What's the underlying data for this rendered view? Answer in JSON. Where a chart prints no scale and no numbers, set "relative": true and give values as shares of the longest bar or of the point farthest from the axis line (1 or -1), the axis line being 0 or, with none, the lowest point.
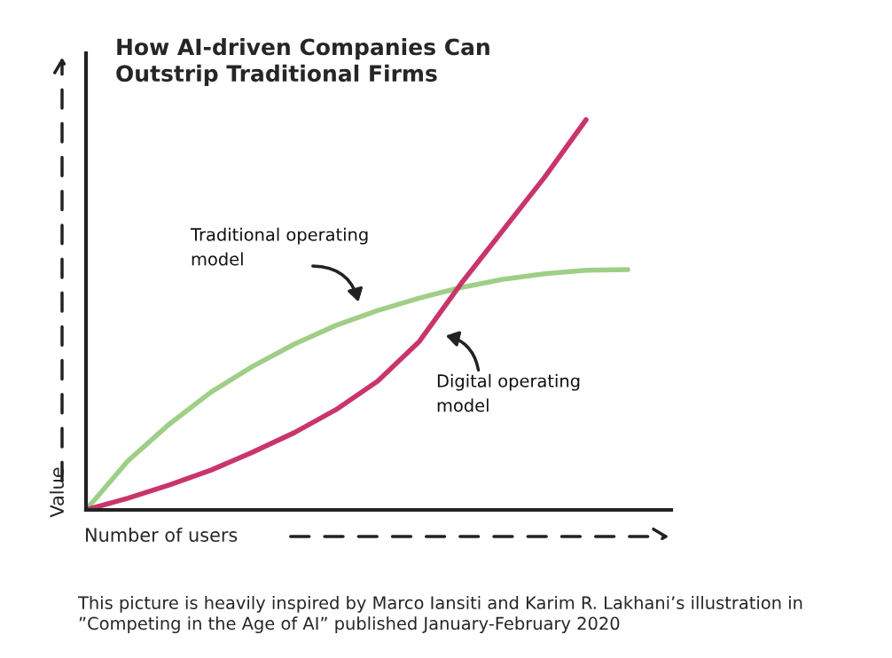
{
  "chart_data": {
    "type": "line",
    "relative": true,
    "title": "How AI-driven Companies Can\nOutstrip Traditional Firms",
    "xlabel": "Number of users",
    "ylabel": "Value",
    "categories": [
      null,
      null,
      null,
      null,
      null,
      null,
      null,
      null,
      null,
      null,
      null,
      null,
      null,
      null
    ],
    "series": [
      {
        "name": "Traditional operating model",
        "color": "#9fcf87",
        "values": [
          0,
          0.125,
          0.22,
          0.302,
          0.368,
          0.425,
          0.473,
          0.511,
          0.543,
          0.57,
          0.591,
          0.605,
          0.614,
          0.616
        ]
      },
      {
        "name": "Digital operating model",
        "color": "#c9356b",
        "values": [
          0,
          0.03,
          0.064,
          0.102,
          0.148,
          0.198,
          0.257,
          0.33,
          0.432,
          0.58,
          0.716,
          0.852,
          1,
          null
        ]
      }
    ],
    "annotations": [
      "This picture is heavily inspired by Marco Iansiti and Karim R. Lakhani’s illustration in ”Competing in the Age of AI” published January-February 2020"
    ],
    "legend": false,
    "marker": "none",
    "line_style": "solid"
  }
}
